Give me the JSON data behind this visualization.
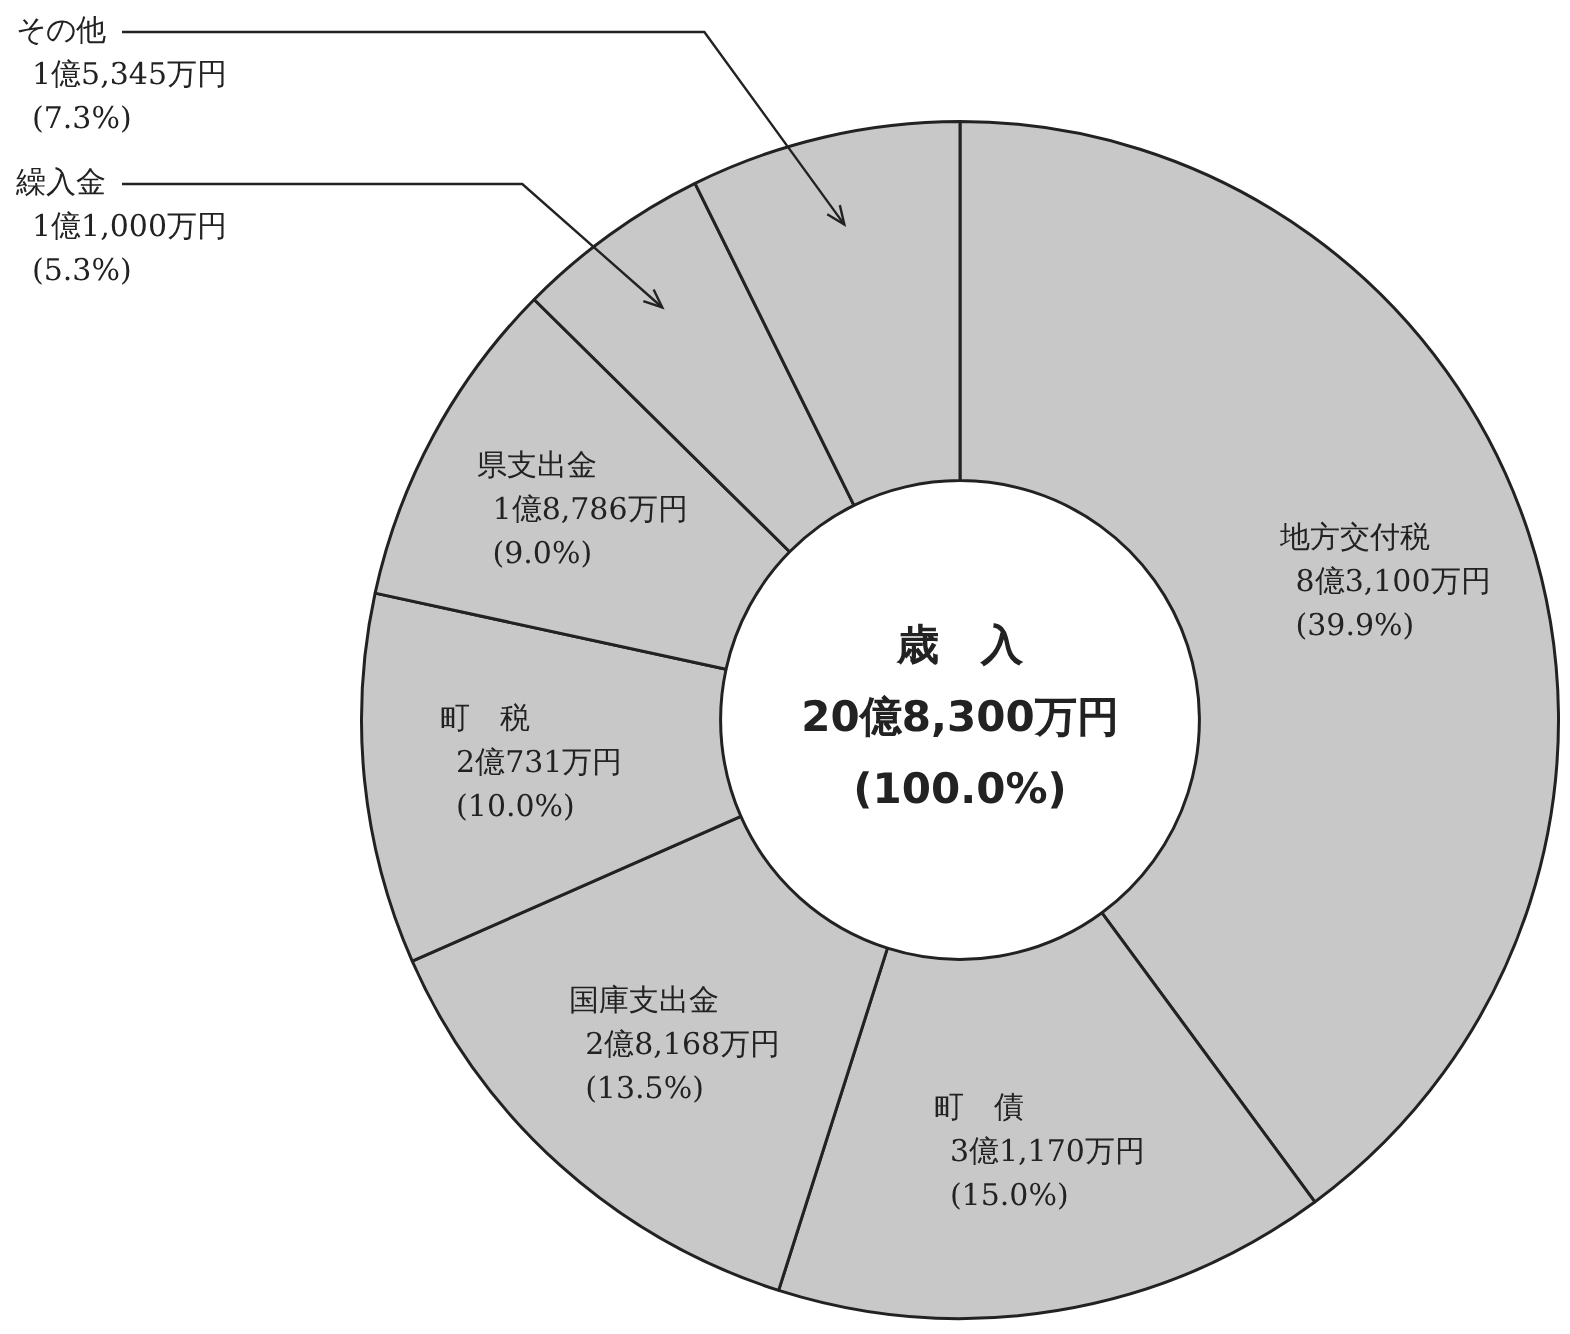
{
  "chart_data": {
    "type": "donut",
    "title": "歳　入",
    "annotations": [
      "20億8,300万円",
      "(100.0%)"
    ],
    "categories": [
      "地方交付税",
      "町　債",
      "国庫支出金",
      "町　税",
      "県支出金",
      "繰入金",
      "その他"
    ],
    "values": [
      39.9,
      15.0,
      13.5,
      10.0,
      9.0,
      5.3,
      7.3
    ],
    "value_labels": [
      "8億3,100万円\n(39.9%)",
      "3億1,170万円\n(15.0%)",
      "2億8,168万円\n(13.5%)",
      "2億731万円\n(10.0%)",
      "1億8,786万円\n(9.0%)",
      "1億1,000万円\n(5.3%)",
      "1億5,345万円\n(7.3%)"
    ],
    "colors": [
      "#c8c8c8",
      "#c8c8c8",
      "#c8c8c8",
      "#c8c8c8",
      "#c8c8c8",
      "#c8c8c8",
      "#c8c8c8"
    ],
    "legend": false
  }
}
